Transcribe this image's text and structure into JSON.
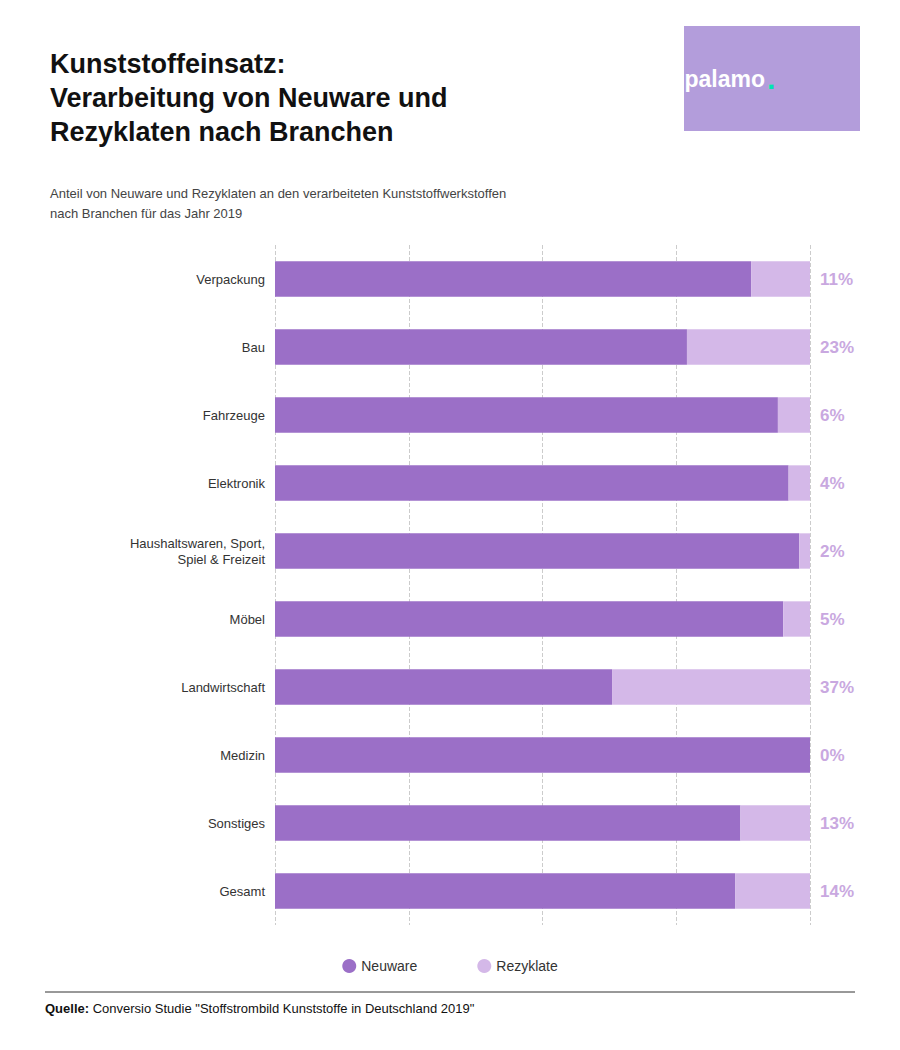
{
  "chart_data": {
    "type": "bar",
    "orientation": "horizontal",
    "stacked": true,
    "title": "Kunststoffeinsatz:\nVerarbeitung von Neuware und\nRezyklaten nach Branchen",
    "subtitle": "Anteil von Neuware und Rezyklaten an den verarbeiteten Kunststoffwerkstoffen\nnach Branchen für das Jahr 2019",
    "categories": [
      "Verpackung",
      "Bau",
      "Fahrzeuge",
      "Elektronik",
      "Haushaltswaren, Sport,\nSpiel & Freizeit",
      "Möbel",
      "Landwirtschaft",
      "Medizin",
      "Sonstiges",
      "Gesamt"
    ],
    "series": [
      {
        "name": "Neuware",
        "color": "#9b6fc7",
        "values": [
          89,
          77,
          94,
          96,
          98,
          95,
          63,
          100,
          87,
          86
        ]
      },
      {
        "name": "Rezyklate",
        "color": "#d4b8e8",
        "values": [
          11,
          23,
          6,
          4,
          2,
          5,
          37,
          0,
          13,
          14
        ],
        "value_labels": [
          "11%",
          "23%",
          "6%",
          "4%",
          "2%",
          "5%",
          "37%",
          "0%",
          "13%",
          "14%"
        ],
        "data_labels": true
      }
    ],
    "xlim": [
      0,
      100
    ],
    "xticks": [
      0,
      25,
      50,
      75,
      100
    ],
    "grid": true,
    "tick_labels": "y",
    "legend": "bottom",
    "annotations": [
      {
        "text": "palamo",
        "color": "#ffffff"
      },
      {
        "text": ".",
        "color": "#00e5b0"
      },
      {
        "text": "Quelle:"
      },
      {
        "text": " Conversio Studie \"Stoffstrombild Kunststoffe in Deutschland 2019\""
      }
    ]
  }
}
